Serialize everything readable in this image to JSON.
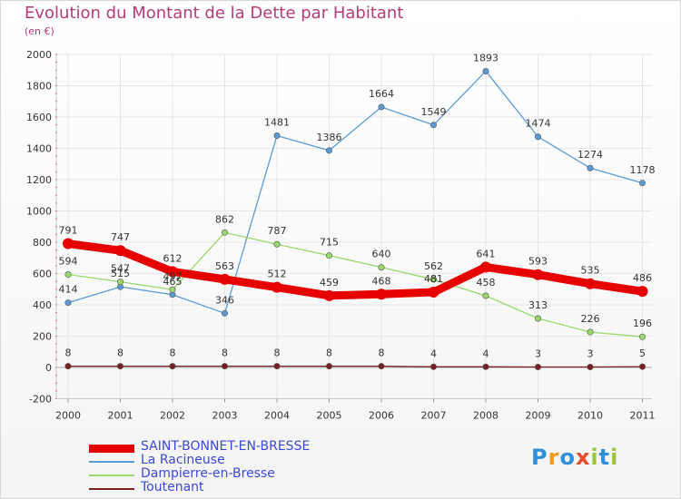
{
  "chart_data": {
    "type": "line",
    "title": "Evolution du Montant de la Dette par Habitant",
    "subtitle": "(en €)",
    "xlabel": "",
    "ylabel": "",
    "ylim": [
      -200,
      2000
    ],
    "yticks": [
      -200,
      0,
      200,
      400,
      600,
      800,
      1000,
      1200,
      1400,
      1600,
      1800,
      2000
    ],
    "categories": [
      "2000",
      "2001",
      "2002",
      "2003",
      "2004",
      "2005",
      "2006",
      "2007",
      "2008",
      "2009",
      "2010",
      "2011"
    ],
    "series": [
      {
        "name": "SAINT-BONNET-EN-BRESSE",
        "color": "#e60000",
        "values": [
          791,
          747,
          612,
          563,
          512,
          459,
          468,
          481,
          641,
          593,
          535,
          486
        ]
      },
      {
        "name": "La Racineuse",
        "color": "#5b9bd5",
        "values": [
          414,
          515,
          465,
          346,
          1481,
          1386,
          1664,
          1549,
          1893,
          1474,
          1274,
          1178
        ]
      },
      {
        "name": "Dampierre-en-Bresse",
        "color": "#99d86a",
        "values": [
          594,
          547,
          497,
          862,
          787,
          715,
          640,
          562,
          458,
          313,
          226,
          196
        ]
      },
      {
        "name": "Toutenant",
        "color": "#7a1f1f",
        "values": [
          8,
          8,
          8,
          8,
          8,
          8,
          8,
          4,
          4,
          3,
          3,
          5
        ]
      }
    ]
  },
  "logo": {
    "text": "Proxiti",
    "letters": [
      "P",
      "r",
      "o",
      "x",
      "i",
      "t",
      "i"
    ],
    "colors": [
      "#2f8fd8",
      "#f39a1c",
      "#2f8fd8",
      "#e84a2a",
      "#9bc53d",
      "#2f8fd8",
      "#9bc53d"
    ]
  }
}
